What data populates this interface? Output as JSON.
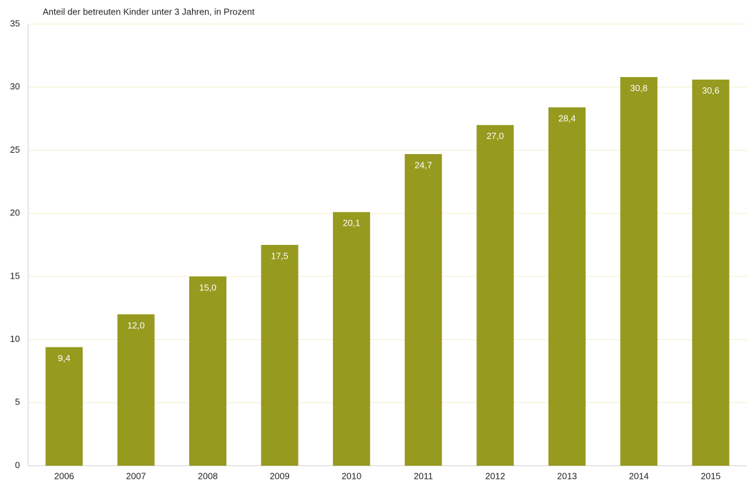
{
  "chart_data": {
    "type": "bar",
    "title": "Anteil der betreuten Kinder unter 3 Jahren, in Prozent",
    "categories": [
      "2006",
      "2007",
      "2008",
      "2009",
      "2010",
      "2011",
      "2012",
      "2013",
      "2014",
      "2015"
    ],
    "values": [
      9.4,
      12.0,
      15.0,
      17.5,
      20.1,
      24.7,
      27.0,
      28.4,
      30.8,
      30.6
    ],
    "value_labels": [
      "9,4",
      "12,0",
      "15,0",
      "17,5",
      "20,1",
      "24,7",
      "27,0",
      "28,4",
      "30,8",
      "30,6"
    ],
    "color": "#969a1f",
    "ylim": [
      0,
      35
    ],
    "yticks": [
      0,
      5,
      10,
      15,
      20,
      25,
      30,
      35
    ],
    "grid": true
  }
}
